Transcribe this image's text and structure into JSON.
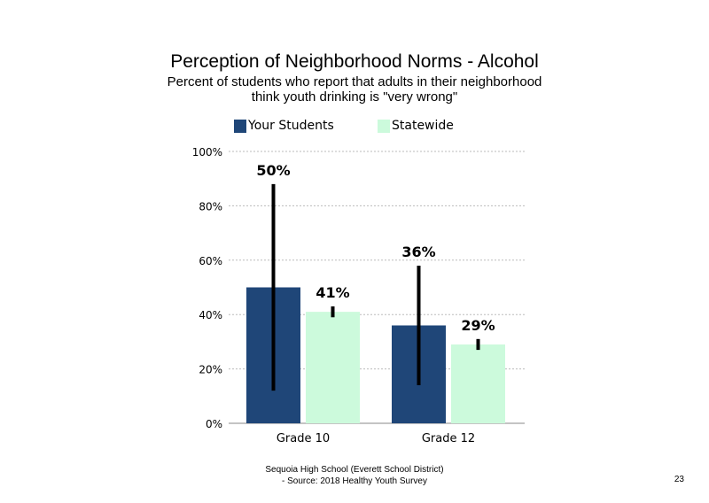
{
  "title": "Perception of Neighborhood Norms - Alcohol",
  "subtitle_line1": "Percent of students who report that adults in their neighborhood",
  "subtitle_line2": "think youth drinking is \"very wrong\"",
  "footer_line1": "Sequoia High School (Everett School District)",
  "footer_line2": "- Source: 2018 Healthy Youth Survey",
  "page_number": "23",
  "colors": {
    "your_students": "#1f4678",
    "statewide": "#ccfadc",
    "gridline": "#bbbbbb",
    "error_bar": "#000000"
  },
  "chart_data": {
    "type": "bar",
    "categories": [
      "Grade 10",
      "Grade 12"
    ],
    "series": [
      {
        "name": "Your Students",
        "values": [
          50,
          36
        ],
        "labels": [
          "50%",
          "36%"
        ],
        "error_low": [
          12,
          14
        ],
        "error_high": [
          88,
          58
        ]
      },
      {
        "name": "Statewide",
        "values": [
          41,
          29
        ],
        "labels": [
          "41%",
          "29%"
        ],
        "error_low": [
          39,
          27
        ],
        "error_high": [
          43,
          31
        ]
      }
    ],
    "yticks": [
      "0%",
      "20%",
      "40%",
      "60%",
      "80%",
      "100%"
    ],
    "ytick_values": [
      0,
      20,
      40,
      60,
      80,
      100
    ],
    "ylim": [
      0,
      100
    ],
    "grid": true,
    "legend": "top"
  }
}
